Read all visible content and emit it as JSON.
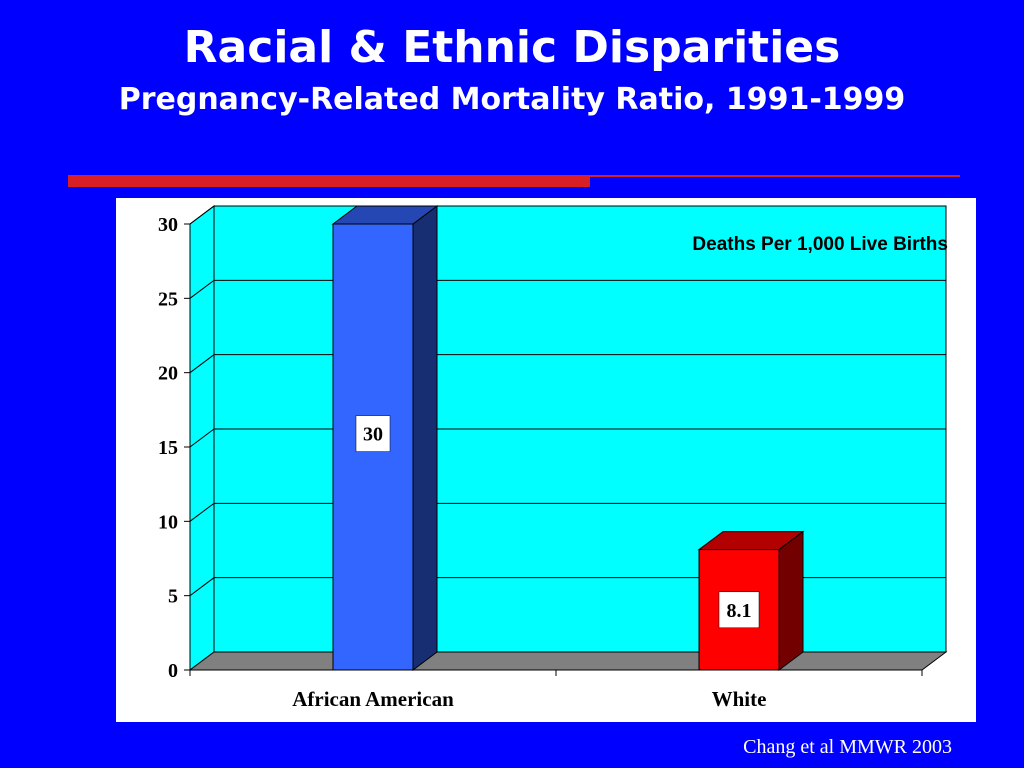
{
  "slide": {
    "title": "Racial & Ethnic Disparities",
    "subtitle": "Pregnancy-Related Mortality Ratio, 1991-1999",
    "source": "Chang et al MMWR 2003"
  },
  "colors": {
    "background": "#0000ff",
    "plot_area": "#00ffff",
    "floor": "#808080",
    "accent_rule": "#d81f26"
  },
  "chart_data": {
    "type": "bar",
    "three_d": true,
    "categories": [
      "African American",
      "White"
    ],
    "values": [
      30,
      8.1
    ],
    "data_labels": [
      "30",
      "8.1"
    ],
    "bar_colors": [
      "#3366ff",
      "#ff0000"
    ],
    "annotation": "Deaths Per 1,000 Live Births",
    "ylim": [
      0,
      30
    ],
    "yticks": [
      "0",
      "5",
      "10",
      "15",
      "20",
      "25",
      "30"
    ],
    "grid": true,
    "legend": "none"
  }
}
